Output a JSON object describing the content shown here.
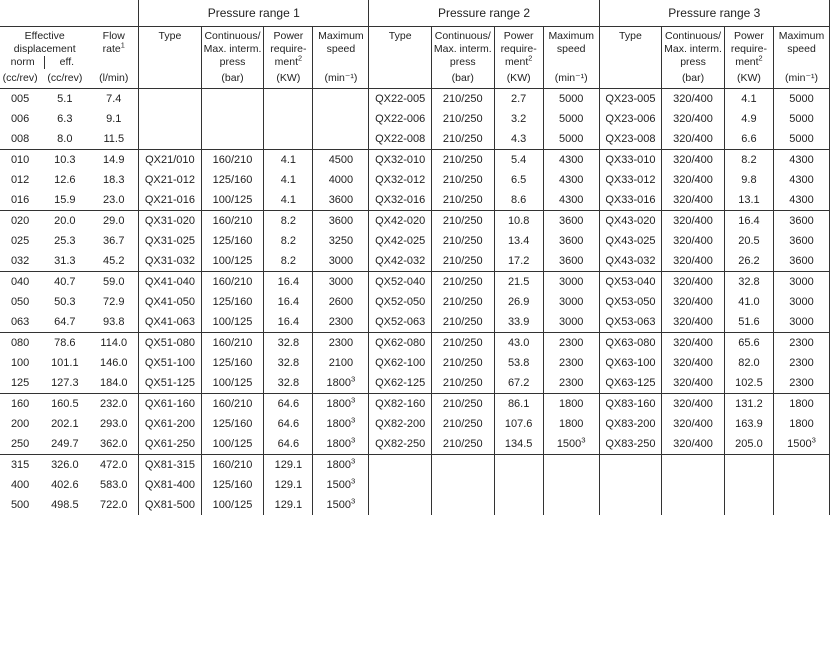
{
  "headers": {
    "range1": "Pressure range 1",
    "range2": "Pressure range 2",
    "range3": "Pressure range 3",
    "eff_disp": "Effective\ndisplacement",
    "eff_norm": "norm",
    "eff_eff": "eff.",
    "flow": "Flow\nrate",
    "type": "Type",
    "press": "Continuous/\nMax. interm.\npress",
    "power": "Power\nrequire-\nment",
    "speed": "Maximum\nspeed"
  },
  "units": {
    "norm": "(cc/rev)",
    "eff": "(cc/rev)",
    "flow": "(l/min)",
    "press": "(bar)",
    "power": "(KW)",
    "speed": "(min⁻¹)"
  },
  "sup": {
    "n1": "1",
    "n2": "2",
    "n3": "3"
  },
  "groups": [
    [
      {
        "norm": "005",
        "eff": "5.1",
        "flow": "7.4",
        "t1": "",
        "p1": "",
        "w1": "",
        "s1": "",
        "t2": "QX22-005",
        "p2": "210/250",
        "w2": "2.7",
        "s2": "5000",
        "t3": "QX23-005",
        "p3": "320/400",
        "w3": "4.1",
        "s3": "5000"
      },
      {
        "norm": "006",
        "eff": "6.3",
        "flow": "9.1",
        "t1": "",
        "p1": "",
        "w1": "",
        "s1": "",
        "t2": "QX22-006",
        "p2": "210/250",
        "w2": "3.2",
        "s2": "5000",
        "t3": "QX23-006",
        "p3": "320/400",
        "w3": "4.9",
        "s3": "5000"
      },
      {
        "norm": "008",
        "eff": "8.0",
        "flow": "11.5",
        "t1": "",
        "p1": "",
        "w1": "",
        "s1": "",
        "t2": "QX22-008",
        "p2": "210/250",
        "w2": "4.3",
        "s2": "5000",
        "t3": "QX23-008",
        "p3": "320/400",
        "w3": "6.6",
        "s3": "5000"
      }
    ],
    [
      {
        "norm": "010",
        "eff": "10.3",
        "flow": "14.9",
        "t1": "QX21/010",
        "p1": "160/210",
        "w1": "4.1",
        "s1": "4500",
        "t2": "QX32-010",
        "p2": "210/250",
        "w2": "5.4",
        "s2": "4300",
        "t3": "QX33-010",
        "p3": "320/400",
        "w3": "8.2",
        "s3": "4300"
      },
      {
        "norm": "012",
        "eff": "12.6",
        "flow": "18.3",
        "t1": "QX21-012",
        "p1": "125/160",
        "w1": "4.1",
        "s1": "4000",
        "t2": "QX32-012",
        "p2": "210/250",
        "w2": "6.5",
        "s2": "4300",
        "t3": "QX33-012",
        "p3": "320/400",
        "w3": "9.8",
        "s3": "4300"
      },
      {
        "norm": "016",
        "eff": "15.9",
        "flow": "23.0",
        "t1": "QX21-016",
        "p1": "100/125",
        "w1": "4.1",
        "s1": "3600",
        "t2": "QX32-016",
        "p2": "210/250",
        "w2": "8.6",
        "s2": "4300",
        "t3": "QX33-016",
        "p3": "320/400",
        "w3": "13.1",
        "s3": "4300"
      }
    ],
    [
      {
        "norm": "020",
        "eff": "20.0",
        "flow": "29.0",
        "t1": "QX31-020",
        "p1": "160/210",
        "w1": "8.2",
        "s1": "3600",
        "t2": "QX42-020",
        "p2": "210/250",
        "w2": "10.8",
        "s2": "3600",
        "t3": "QX43-020",
        "p3": "320/400",
        "w3": "16.4",
        "s3": "3600"
      },
      {
        "norm": "025",
        "eff": "25.3",
        "flow": "36.7",
        "t1": "QX31-025",
        "p1": "125/160",
        "w1": "8.2",
        "s1": "3250",
        "t2": "QX42-025",
        "p2": "210/250",
        "w2": "13.4",
        "s2": "3600",
        "t3": "QX43-025",
        "p3": "320/400",
        "w3": "20.5",
        "s3": "3600"
      },
      {
        "norm": "032",
        "eff": "31.3",
        "flow": "45.2",
        "t1": "QX31-032",
        "p1": "100/125",
        "w1": "8.2",
        "s1": "3000",
        "t2": "QX42-032",
        "p2": "210/250",
        "w2": "17.2",
        "s2": "3600",
        "t3": "QX43-032",
        "p3": "320/400",
        "w3": "26.2",
        "s3": "3600"
      }
    ],
    [
      {
        "norm": "040",
        "eff": "40.7",
        "flow": "59.0",
        "t1": "QX41-040",
        "p1": "160/210",
        "w1": "16.4",
        "s1": "3000",
        "t2": "QX52-040",
        "p2": "210/250",
        "w2": "21.5",
        "s2": "3000",
        "t3": "QX53-040",
        "p3": "320/400",
        "w3": "32.8",
        "s3": "3000"
      },
      {
        "norm": "050",
        "eff": "50.3",
        "flow": "72.9",
        "t1": "QX41-050",
        "p1": "125/160",
        "w1": "16.4",
        "s1": "2600",
        "t2": "QX52-050",
        "p2": "210/250",
        "w2": "26.9",
        "s2": "3000",
        "t3": "QX53-050",
        "p3": "320/400",
        "w3": "41.0",
        "s3": "3000"
      },
      {
        "norm": "063",
        "eff": "64.7",
        "flow": "93.8",
        "t1": "QX41-063",
        "p1": "100/125",
        "w1": "16.4",
        "s1": "2300",
        "t2": "QX52-063",
        "p2": "210/250",
        "w2": "33.9",
        "s2": "3000",
        "t3": "QX53-063",
        "p3": "320/400",
        "w3": "51.6",
        "s3": "3000"
      }
    ],
    [
      {
        "norm": "080",
        "eff": "78.6",
        "flow": "114.0",
        "t1": "QX51-080",
        "p1": "160/210",
        "w1": "32.8",
        "s1": "2300",
        "t2": "QX62-080",
        "p2": "210/250",
        "w2": "43.0",
        "s2": "2300",
        "t3": "QX63-080",
        "p3": "320/400",
        "w3": "65.6",
        "s3": "2300"
      },
      {
        "norm": "100",
        "eff": "101.1",
        "flow": "146.0",
        "t1": "QX51-100",
        "p1": "125/160",
        "w1": "32.8",
        "s1": "2100",
        "t2": "QX62-100",
        "p2": "210/250",
        "w2": "53.8",
        "s2": "2300",
        "t3": "QX63-100",
        "p3": "320/400",
        "w3": "82.0",
        "s3": "2300"
      },
      {
        "norm": "125",
        "eff": "127.3",
        "flow": "184.0",
        "t1": "QX51-125",
        "p1": "100/125",
        "w1": "32.8",
        "s1": "1800",
        "s1sup": "3",
        "t2": "QX62-125",
        "p2": "210/250",
        "w2": "67.2",
        "s2": "2300",
        "t3": "QX63-125",
        "p3": "320/400",
        "w3": "102.5",
        "s3": "2300"
      }
    ],
    [
      {
        "norm": "160",
        "eff": "160.5",
        "flow": "232.0",
        "t1": "QX61-160",
        "p1": "160/210",
        "w1": "64.6",
        "s1": "1800",
        "s1sup": "3",
        "t2": "QX82-160",
        "p2": "210/250",
        "w2": "86.1",
        "s2": "1800",
        "t3": "QX83-160",
        "p3": "320/400",
        "w3": "131.2",
        "s3": "1800"
      },
      {
        "norm": "200",
        "eff": "202.1",
        "flow": "293.0",
        "t1": "QX61-200",
        "p1": "125/160",
        "w1": "64.6",
        "s1": "1800",
        "s1sup": "3",
        "t2": "QX82-200",
        "p2": "210/250",
        "w2": "107.6",
        "s2": "1800",
        "t3": "QX83-200",
        "p3": "320/400",
        "w3": "163.9",
        "s3": "1800"
      },
      {
        "norm": "250",
        "eff": "249.7",
        "flow": "362.0",
        "t1": "QX61-250",
        "p1": "100/125",
        "w1": "64.6",
        "s1": "1800",
        "s1sup": "3",
        "t2": "QX82-250",
        "p2": "210/250",
        "w2": "134.5",
        "s2": "1500",
        "s2sup": "3",
        "t3": "QX83-250",
        "p3": "320/400",
        "w3": "205.0",
        "s3": "1500",
        "s3sup": "3"
      }
    ],
    [
      {
        "norm": "315",
        "eff": "326.0",
        "flow": "472.0",
        "t1": "QX81-315",
        "p1": "160/210",
        "w1": "129.1",
        "s1": "1800",
        "s1sup": "3",
        "t2": "",
        "p2": "",
        "w2": "",
        "s2": "",
        "t3": "",
        "p3": "",
        "w3": "",
        "s3": ""
      },
      {
        "norm": "400",
        "eff": "402.6",
        "flow": "583.0",
        "t1": "QX81-400",
        "p1": "125/160",
        "w1": "129.1",
        "s1": "1500",
        "s1sup": "3",
        "t2": "",
        "p2": "",
        "w2": "",
        "s2": "",
        "t3": "",
        "p3": "",
        "w3": "",
        "s3": ""
      },
      {
        "norm": "500",
        "eff": "498.5",
        "flow": "722.0",
        "t1": "QX81-500",
        "p1": "100/125",
        "w1": "129.1",
        "s1": "1500",
        "s1sup": "3",
        "t2": "",
        "p2": "",
        "w2": "",
        "s2": "",
        "t3": "",
        "p3": "",
        "w3": "",
        "s3": ""
      }
    ]
  ]
}
